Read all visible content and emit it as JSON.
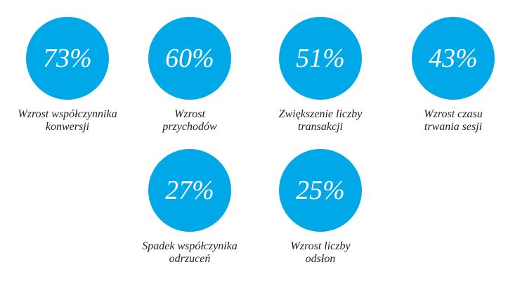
{
  "colors": {
    "circle": "#00A8E8",
    "label": "#222222",
    "value": "#FFFFFF"
  },
  "stats": [
    {
      "value": "73%",
      "label_line1": "Wzrost współczynnika",
      "label_line2": "konwersji"
    },
    {
      "value": "60%",
      "label_line1": "Wzrost",
      "label_line2": "przychodów"
    },
    {
      "value": "51%",
      "label_line1": "Zwiększenie liczby",
      "label_line2": "transakcji"
    },
    {
      "value": "43%",
      "label_line1": "Wzrost czasu",
      "label_line2": "trwania sesji"
    },
    {
      "value": "27%",
      "label_line1": "Spadek współczynika",
      "label_line2": "odrzuceń"
    },
    {
      "value": "25%",
      "label_line1": "Wzrost liczby",
      "label_line2": "odsłon"
    }
  ]
}
